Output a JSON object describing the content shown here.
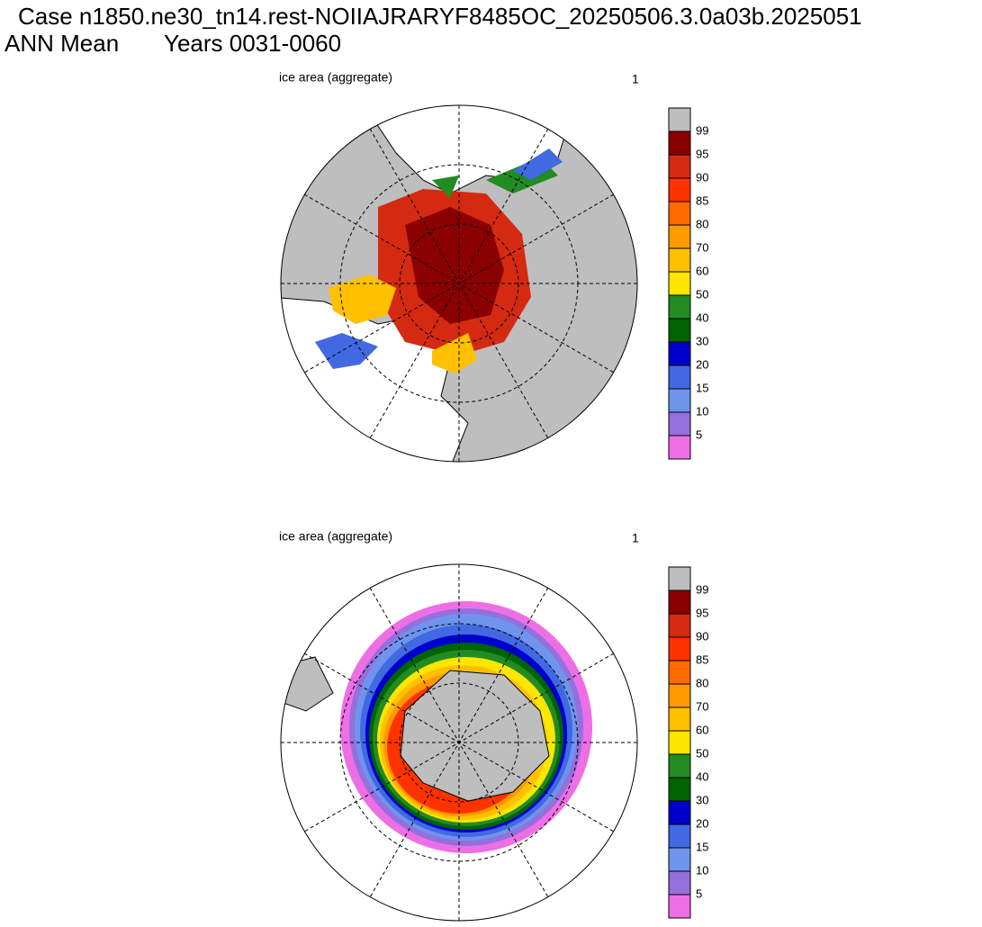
{
  "header": {
    "case": "Case n1850.ne30_tn14.rest-NOIIAJRARYF8485OC_20250506.3.0a03b.2025051",
    "season": "ANN Mean",
    "years": "Years 0031-0060"
  },
  "colorbar": {
    "labels": [
      99,
      95,
      90,
      85,
      80,
      70,
      60,
      50,
      40,
      30,
      20,
      15,
      10,
      5
    ],
    "colors": [
      "#bebebe",
      "#8b0000",
      "#d42a12",
      "#ff3300",
      "#ff6a00",
      "#ff9900",
      "#ffc000",
      "#ffe600",
      "#228b22",
      "#006400",
      "#0000cd",
      "#4169e1",
      "#6f94ee",
      "#9370db",
      "#ee6ee6"
    ]
  },
  "panels": [
    {
      "title": "ice area  (aggregate)",
      "right_label": "1"
    },
    {
      "title": "ice area  (aggregate)",
      "right_label": "1"
    }
  ]
}
